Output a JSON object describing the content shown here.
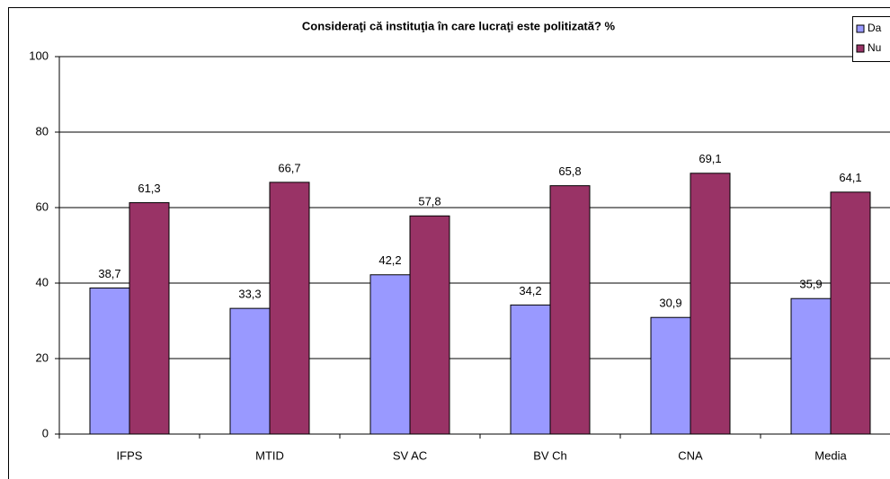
{
  "chart_data": {
    "type": "bar",
    "title": "Consideraţi că instituţia în care lucraţi este politizată? %",
    "categories": [
      "IFPS",
      "MTID",
      "SV AC",
      "BV Ch",
      "CNA",
      "Media"
    ],
    "series": [
      {
        "name": "Da",
        "color": "#9999ff",
        "values": [
          38.7,
          33.3,
          42.2,
          34.2,
          30.9,
          35.9
        ],
        "value_labels": [
          "38,7",
          "33,3",
          "42,2",
          "34,2",
          "30,9",
          "35,9"
        ]
      },
      {
        "name": "Nu",
        "color": "#993366",
        "values": [
          61.3,
          66.7,
          57.8,
          65.8,
          69.1,
          64.1
        ],
        "value_labels": [
          "61,3",
          "66,7",
          "57,8",
          "65,8",
          "69,1",
          "64,1"
        ]
      }
    ],
    "ylim": [
      0,
      100
    ],
    "yticks": [
      0,
      20,
      40,
      60,
      80,
      100
    ],
    "grid": true,
    "legend": "top-right"
  }
}
